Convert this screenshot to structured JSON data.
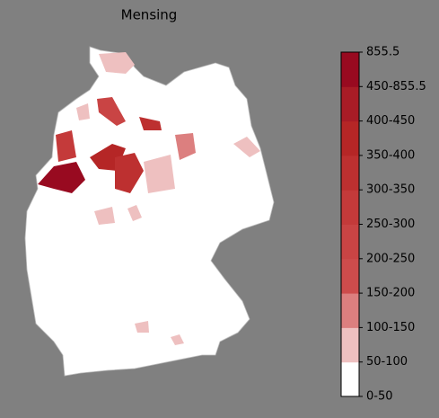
{
  "title": "Mensing",
  "colorbar": {
    "labels": [
      "0-50",
      "50-100",
      "100-150",
      "150-200",
      "200-250",
      "250-300",
      "300-350",
      "350-400",
      "400-450",
      "450-855.5",
      "855.5"
    ],
    "colors": [
      "#ffffff",
      "#eec0c0",
      "#dc7f7f",
      "#cd4c4c",
      "#c94444",
      "#c43a3a",
      "#bd3030",
      "#b52626",
      "#a81c26",
      "#980a20"
    ]
  }
}
